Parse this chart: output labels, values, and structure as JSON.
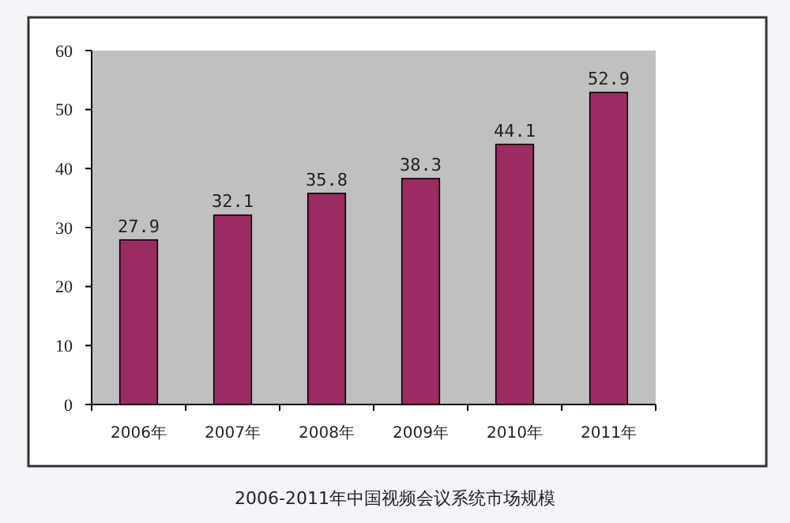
{
  "chart_data": {
    "type": "bar",
    "title": "2006-2011年中国视频会议系统市场规模",
    "categories": [
      "2006年",
      "2007年",
      "2008年",
      "2009年",
      "2010年",
      "2011年"
    ],
    "values": [
      27.9,
      32.1,
      35.8,
      38.3,
      44.1,
      52.9
    ],
    "color": "#9b2c62",
    "ylim": [
      0,
      60
    ],
    "yticks": [
      0,
      10,
      20,
      30,
      40,
      50,
      60
    ],
    "grid": false,
    "data_labels": true
  }
}
